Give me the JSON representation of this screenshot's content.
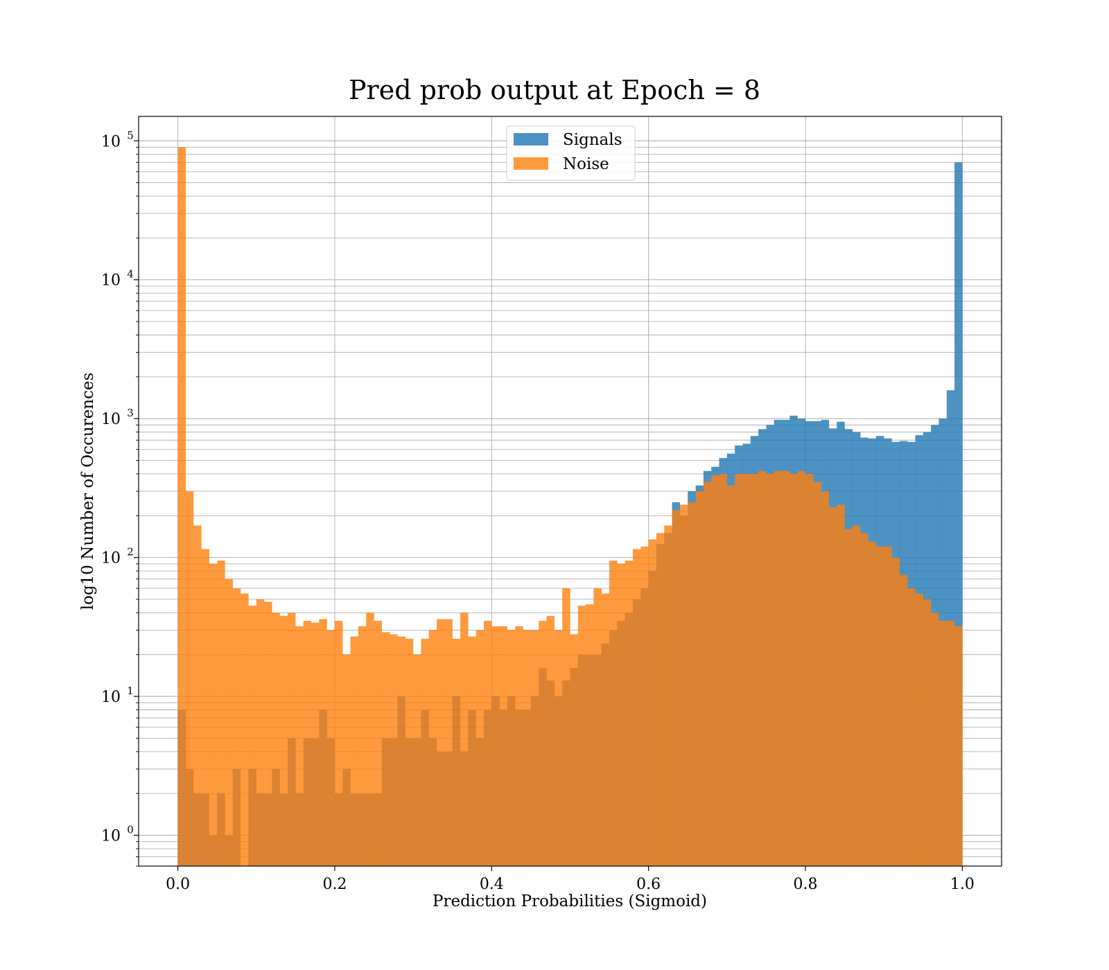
{
  "chart_data": {
    "type": "bar",
    "title": "Pred prob output at Epoch = 8",
    "xlabel": "Prediction Probabilities (Sigmoid)",
    "ylabel": "log10 Number of Occurences",
    "xlim": [
      -0.05,
      1.05
    ],
    "ylim": [
      0.6,
      150000
    ],
    "yscale": "log",
    "grid": true,
    "legend_position": "top-center",
    "x_ticks": [
      "0.0",
      "0.2",
      "0.4",
      "0.6",
      "0.8",
      "1.0"
    ],
    "x_tick_values": [
      0,
      0.2,
      0.4,
      0.6,
      0.8,
      1.0
    ],
    "y_ticks": [
      {
        "base": "10",
        "exp": "0",
        "value": 1
      },
      {
        "base": "10",
        "exp": "1",
        "value": 10
      },
      {
        "base": "10",
        "exp": "2",
        "value": 100
      },
      {
        "base": "10",
        "exp": "3",
        "value": 1000
      },
      {
        "base": "10",
        "exp": "4",
        "value": 10000
      },
      {
        "base": "10",
        "exp": "5",
        "value": 100000
      }
    ],
    "bin_start": 0.0,
    "bin_width": 0.01,
    "series": [
      {
        "name": "Signals",
        "color": "#1f77b4",
        "alpha": 0.8,
        "values": [
          8,
          3,
          2,
          2,
          1,
          2,
          1,
          3,
          0,
          3,
          2,
          2,
          3,
          2,
          5,
          2,
          5,
          5,
          8,
          5,
          2,
          3,
          2,
          2,
          2,
          2,
          5,
          5,
          10,
          5,
          5,
          8,
          5,
          4,
          4,
          10,
          4,
          8,
          5,
          8,
          10,
          8,
          10,
          8,
          8,
          10,
          16,
          13,
          10,
          13,
          16,
          20,
          20,
          20,
          24,
          30,
          35,
          40,
          50,
          60,
          80,
          125,
          150,
          250,
          200,
          300,
          330,
          420,
          450,
          520,
          560,
          640,
          660,
          750,
          840,
          900,
          980,
          980,
          1050,
          1000,
          960,
          960,
          980,
          850,
          950,
          840,
          800,
          730,
          720,
          750,
          720,
          680,
          690,
          680,
          760,
          800,
          900,
          1000,
          1600,
          70000
        ]
      },
      {
        "name": "Noise",
        "color": "#ff7f0e",
        "alpha": 0.8,
        "values": [
          90000,
          300,
          170,
          115,
          90,
          95,
          70,
          60,
          55,
          45,
          50,
          48,
          40,
          38,
          40,
          32,
          35,
          34,
          36,
          30,
          35,
          20,
          27,
          32,
          40,
          35,
          29,
          28,
          27,
          26,
          20,
          26,
          30,
          36,
          36,
          26,
          40,
          27,
          30,
          35,
          32,
          32,
          30,
          32,
          30,
          30,
          35,
          38,
          30,
          60,
          28,
          45,
          46,
          60,
          55,
          95,
          90,
          95,
          115,
          120,
          135,
          150,
          170,
          220,
          240,
          250,
          300,
          350,
          390,
          400,
          330,
          400,
          400,
          400,
          420,
          400,
          420,
          420,
          400,
          420,
          400,
          350,
          300,
          230,
          240,
          160,
          170,
          150,
          130,
          120,
          120,
          100,
          75,
          60,
          55,
          50,
          40,
          35,
          35,
          32
        ]
      }
    ]
  }
}
